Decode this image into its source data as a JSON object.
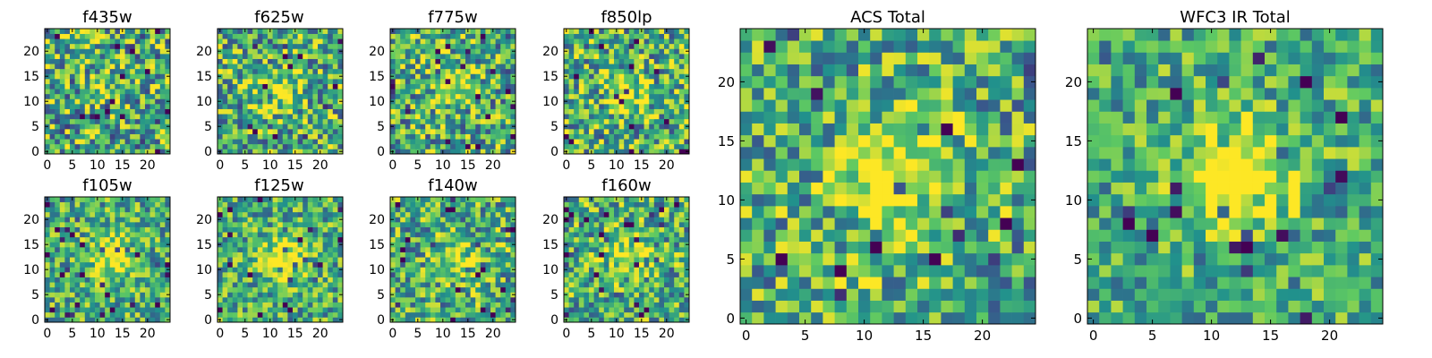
{
  "figure": {
    "colormap": [
      "#440154",
      "#3b528b",
      "#21918c",
      "#5ec962",
      "#fde725"
    ]
  },
  "chart_data": [
    {
      "type": "heatmap",
      "title": "f435w",
      "grid": [
        25,
        25
      ],
      "xlim": [
        -0.5,
        24.5
      ],
      "ylim": [
        -0.5,
        24.5
      ],
      "xticks": [
        0,
        5,
        10,
        15,
        20
      ],
      "yticks": [
        0,
        5,
        10,
        15,
        20
      ],
      "source_center": [
        12,
        12
      ],
      "source_strength": 0.2,
      "noise_amplitude": 0.85,
      "seed": 11
    },
    {
      "type": "heatmap",
      "title": "f625w",
      "grid": [
        25,
        25
      ],
      "xlim": [
        -0.5,
        24.5
      ],
      "ylim": [
        -0.5,
        24.5
      ],
      "xticks": [
        0,
        5,
        10,
        15,
        20
      ],
      "yticks": [
        0,
        5,
        10,
        15,
        20
      ],
      "source_center": [
        12,
        12
      ],
      "source_strength": 0.3,
      "noise_amplitude": 0.8,
      "seed": 23
    },
    {
      "type": "heatmap",
      "title": "f775w",
      "grid": [
        25,
        25
      ],
      "xlim": [
        -0.5,
        24.5
      ],
      "ylim": [
        -0.5,
        24.5
      ],
      "xticks": [
        0,
        5,
        10,
        15,
        20
      ],
      "yticks": [
        0,
        5,
        10,
        15,
        20
      ],
      "source_center": [
        12,
        14
      ],
      "source_strength": 0.35,
      "noise_amplitude": 0.8,
      "seed": 37
    },
    {
      "type": "heatmap",
      "title": "f850lp",
      "grid": [
        25,
        25
      ],
      "xlim": [
        -0.5,
        24.5
      ],
      "ylim": [
        -0.5,
        24.5
      ],
      "xticks": [
        0,
        5,
        10,
        15,
        20
      ],
      "yticks": [
        0,
        5,
        10,
        15,
        20
      ],
      "source_center": [
        12,
        12
      ],
      "source_strength": 0.3,
      "noise_amplitude": 0.8,
      "seed": 41
    },
    {
      "type": "heatmap",
      "title": "f105w",
      "grid": [
        25,
        25
      ],
      "xlim": [
        -0.5,
        24.5
      ],
      "ylim": [
        -0.5,
        24.5
      ],
      "xticks": [
        0,
        5,
        10,
        15,
        20
      ],
      "yticks": [
        0,
        5,
        10,
        15,
        20
      ],
      "source_center": [
        13,
        13
      ],
      "source_strength": 0.45,
      "noise_amplitude": 0.65,
      "seed": 53
    },
    {
      "type": "heatmap",
      "title": "f125w",
      "grid": [
        25,
        25
      ],
      "xlim": [
        -0.5,
        24.5
      ],
      "ylim": [
        -0.5,
        24.5
      ],
      "xticks": [
        0,
        5,
        10,
        15,
        20
      ],
      "yticks": [
        0,
        5,
        10,
        15,
        20
      ],
      "source_center": [
        13,
        12
      ],
      "source_strength": 0.5,
      "noise_amplitude": 0.65,
      "seed": 67
    },
    {
      "type": "heatmap",
      "title": "f140w",
      "grid": [
        25,
        25
      ],
      "xlim": [
        -0.5,
        24.5
      ],
      "ylim": [
        -0.5,
        24.5
      ],
      "xticks": [
        0,
        5,
        10,
        15,
        20
      ],
      "yticks": [
        0,
        5,
        10,
        15,
        20
      ],
      "source_center": [
        12,
        12
      ],
      "source_strength": 0.35,
      "noise_amplitude": 0.75,
      "seed": 71
    },
    {
      "type": "heatmap",
      "title": "f160w",
      "grid": [
        25,
        25
      ],
      "xlim": [
        -0.5,
        24.5
      ],
      "ylim": [
        -0.5,
        24.5
      ],
      "xticks": [
        0,
        5,
        10,
        15,
        20
      ],
      "yticks": [
        0,
        5,
        10,
        15,
        20
      ],
      "source_center": [
        12,
        13
      ],
      "source_strength": 0.35,
      "noise_amplitude": 0.75,
      "seed": 83
    },
    {
      "type": "heatmap",
      "title": "ACS Total",
      "grid": [
        25,
        25
      ],
      "xlim": [
        -0.5,
        24.5
      ],
      "ylim": [
        -0.5,
        24.5
      ],
      "xticks": [
        0,
        5,
        10,
        15,
        20
      ],
      "yticks": [
        0,
        5,
        10,
        15,
        20
      ],
      "source_center": [
        12,
        12
      ],
      "source_strength": 0.55,
      "noise_amplitude": 0.75,
      "seed": 97
    },
    {
      "type": "heatmap",
      "title": "WFC3 IR Total",
      "grid": [
        25,
        25
      ],
      "xlim": [
        -0.5,
        24.5
      ],
      "ylim": [
        -0.5,
        24.5
      ],
      "xticks": [
        0,
        5,
        10,
        15,
        20
      ],
      "yticks": [
        0,
        5,
        10,
        15,
        20
      ],
      "source_center": [
        12,
        12
      ],
      "source_strength": 0.65,
      "noise_amplitude": 0.6,
      "seed": 101
    }
  ]
}
